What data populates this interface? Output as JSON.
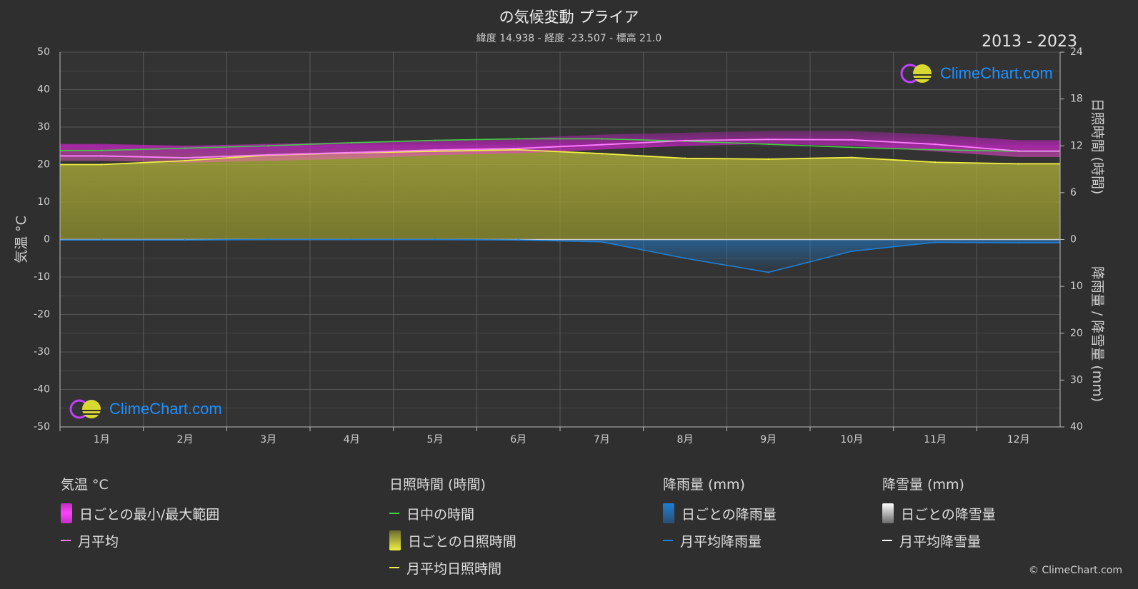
{
  "title": "の気候変動 プライア",
  "subtitle": "緯度 14.938 - 経度 -23.507 - 標高 21.0",
  "year_range": "2013 - 2023",
  "logo_text": "ClimeChart.com",
  "copyright": "© ClimeChart.com",
  "colors": {
    "background": "#2f2f2f",
    "temp_range": "#e020e0",
    "temp_avg": "#ff80ff",
    "daylight": "#40d040",
    "sunshine_fill": "#a8a838",
    "sunshine_avg": "#f0f040",
    "rain": "#1e7fd8",
    "snow": "#ffffff"
  },
  "legend": {
    "temperature": {
      "heading": "気温 °C",
      "range_label": "日ごとの最小/最大範囲",
      "avg_label": "月平均"
    },
    "sunshine": {
      "heading": "日照時間 (時間)",
      "daylight_label": "日中の時間",
      "daily_label": "日ごとの日照時間",
      "avg_label": "月平均日照時間"
    },
    "rain": {
      "heading": "降雨量 (mm)",
      "daily_label": "日ごとの降雨量",
      "avg_label": "月平均降雨量"
    },
    "snow": {
      "heading": "降雪量 (mm)",
      "daily_label": "日ごとの降雪量",
      "avg_label": "月平均降雪量"
    }
  },
  "chart_data": {
    "type": "area",
    "categories": [
      "1月",
      "2月",
      "3月",
      "4月",
      "5月",
      "6月",
      "7月",
      "8月",
      "9月",
      "10月",
      "11月",
      "12月"
    ],
    "left_axis": {
      "label": "気温 °C",
      "ticks": [
        50,
        40,
        30,
        20,
        10,
        0,
        -10,
        -20,
        -30,
        -40,
        -50
      ],
      "range": [
        -50,
        50
      ]
    },
    "right_axis_top": {
      "label": "日照時間 (時間)",
      "ticks": [
        24,
        18,
        12,
        6,
        0
      ],
      "range": [
        0,
        24
      ]
    },
    "right_axis_bottom": {
      "label": "降雨量 / 降雪量 (mm)",
      "ticks": [
        0,
        10,
        20,
        30,
        40
      ],
      "range": [
        0,
        40
      ]
    },
    "grid": true,
    "series": [
      {
        "name": "日ごとの最小/最大範囲",
        "kind": "band",
        "axis": "left",
        "low": [
          21.0,
          20.5,
          21.0,
          21.5,
          22.5,
          23.0,
          24.0,
          25.0,
          25.5,
          25.0,
          23.5,
          22.0
        ],
        "high": [
          25.5,
          25.0,
          25.5,
          26.0,
          26.5,
          27.0,
          28.0,
          28.5,
          29.0,
          29.0,
          28.0,
          26.5
        ]
      },
      {
        "name": "月平均",
        "kind": "line",
        "axis": "left",
        "values": [
          22.3,
          21.8,
          22.6,
          23.2,
          23.9,
          24.3,
          25.3,
          26.4,
          26.7,
          26.6,
          25.4,
          23.6
        ]
      },
      {
        "name": "日中の時間",
        "kind": "line",
        "axis": "right_top",
        "values": [
          11.4,
          11.7,
          12.0,
          12.4,
          12.7,
          12.9,
          12.9,
          12.6,
          12.2,
          11.8,
          11.5,
          11.3
        ]
      },
      {
        "name": "日ごとの日照時間",
        "kind": "area",
        "axis": "right_top",
        "values": [
          9.6,
          10.1,
          10.8,
          11.1,
          11.3,
          11.5,
          11.0,
          10.4,
          10.3,
          10.5,
          9.9,
          9.7
        ]
      },
      {
        "name": "月平均日照時間",
        "kind": "line",
        "axis": "right_top",
        "values": [
          9.6,
          10.1,
          10.8,
          11.1,
          11.3,
          11.5,
          11.0,
          10.4,
          10.3,
          10.5,
          9.9,
          9.7
        ]
      },
      {
        "name": "月平均降雨量",
        "kind": "line",
        "axis": "right_bottom",
        "values": [
          0.1,
          0.1,
          0.0,
          0.0,
          0.0,
          0.1,
          0.5,
          4.0,
          7.0,
          2.5,
          0.6,
          0.7
        ]
      },
      {
        "name": "月平均降雪量",
        "kind": "line",
        "axis": "right_bottom",
        "values": [
          0,
          0,
          0,
          0,
          0,
          0,
          0,
          0,
          0,
          0,
          0,
          0
        ]
      }
    ]
  }
}
